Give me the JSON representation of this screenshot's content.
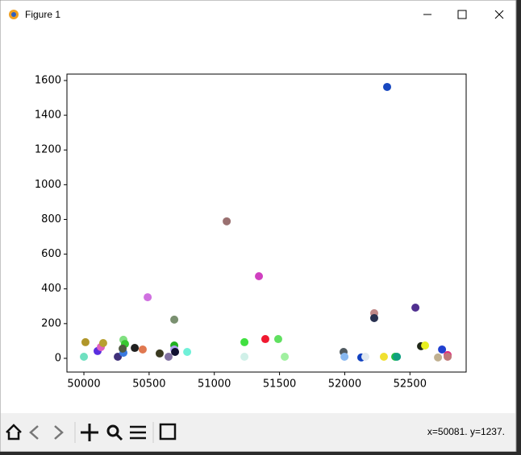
{
  "window": {
    "title": "Figure 1"
  },
  "status": "x=50081. y=1237.",
  "chart_data": {
    "type": "scatter",
    "x": [
      50000,
      50012,
      50105,
      50130,
      50148,
      50260,
      50303,
      50303,
      50315,
      50297,
      50390,
      50451,
      50489,
      50581,
      50649,
      50693,
      50693,
      50693,
      50699,
      50792,
      51095,
      51231,
      51231,
      51342,
      51391,
      51490,
      51540,
      51991,
      51998,
      52127,
      52158,
      52226,
      52226,
      52300,
      52325,
      52387,
      52400,
      52542,
      52585,
      52616,
      52715,
      52746,
      52789,
      52789
    ],
    "y": [
      9,
      93,
      42,
      65,
      88,
      9,
      107,
      32,
      83,
      56,
      60,
      51,
      352,
      28,
      9,
      223,
      74,
      51,
      37,
      37,
      789,
      93,
      9,
      473,
      111,
      111,
      9,
      37,
      9,
      5,
      9,
      260,
      232,
      9,
      1563,
      9,
      9,
      292,
      70,
      74,
      5,
      51,
      19,
      9
    ],
    "colors": [
      "#6fe0c0",
      "#b0962a",
      "#5a2ee0",
      "#e060c0",
      "#b8a030",
      "#40307a",
      "#80e080",
      "#3a7ae0",
      "#38c830",
      "#505a40",
      "#202020",
      "#e07850",
      "#d070e0",
      "#3a3a20",
      "#8070a0",
      "#7a9070",
      "#20b020",
      "#b0a0f0",
      "#101030",
      "#70f0d8",
      "#9a7070",
      "#40e040",
      "#d0f0e8",
      "#d040c0",
      "#f01830",
      "#60e060",
      "#a0f0a0",
      "#505a60",
      "#88b8f0",
      "#1040c0",
      "#e0e8f0",
      "#c08888",
      "#283050",
      "#f0e030",
      "#1848c0",
      "#20c040",
      "#10a080",
      "#503090",
      "#202818",
      "#e8f020",
      "#c0b090",
      "#2040d0",
      "#e03080",
      "#c07878"
    ],
    "xlim": [
      49870,
      52931
    ],
    "ylim": [
      -79,
      1637
    ],
    "xticks": [
      50000,
      50500,
      51000,
      51500,
      52000,
      52500
    ],
    "yticks": [
      0,
      200,
      400,
      600,
      800,
      1000,
      1200,
      1400,
      1600
    ]
  }
}
